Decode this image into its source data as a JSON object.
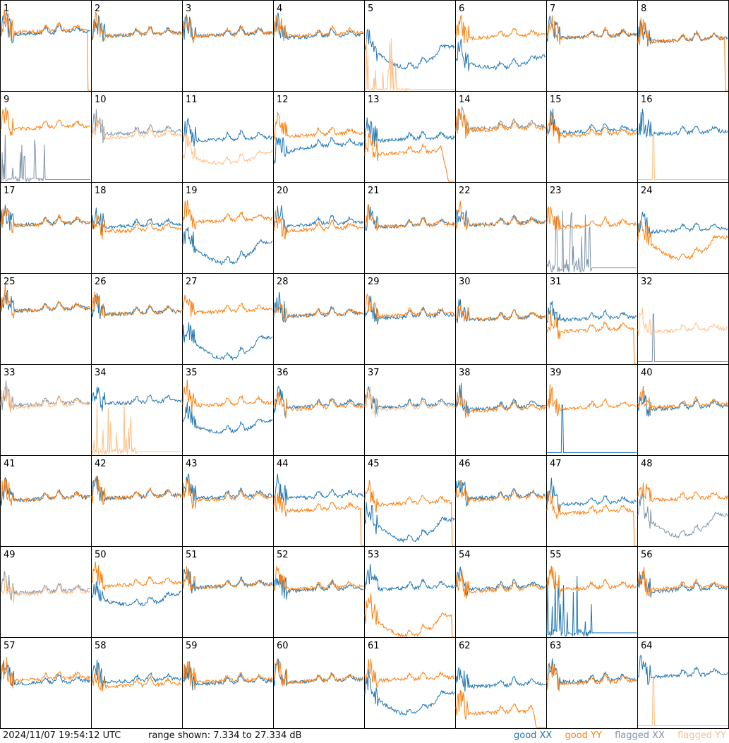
{
  "footer": {
    "timestamp": "2024/11/07 19:54:12 UTC",
    "range_text": "range shown: 7.334 to 27.334 dB"
  },
  "legend": [
    {
      "label": "good XX",
      "color": "#1f77b4"
    },
    {
      "label": "good YY",
      "color": "#ff7f0e"
    },
    {
      "label": "flagged XX",
      "color": "#7f94aa"
    },
    {
      "label": "flagged YY",
      "color": "#ffbf86"
    }
  ],
  "chart_data": {
    "type": "line",
    "layout": "small-multiples 8x8",
    "ylim": [
      7.334,
      27.334
    ],
    "yunit": "dB",
    "grid": false,
    "legend_placement": "bottom-right",
    "panels": [
      {
        "id": 1,
        "xx": "good",
        "yy": "good",
        "xx_level": 0.72,
        "yy_level": 0.74,
        "xx_shape": "flat",
        "yy_shape": "flat",
        "yy_dropout": true
      },
      {
        "id": 2,
        "xx": "good",
        "yy": "good",
        "xx_level": 0.7,
        "yy_level": 0.7,
        "xx_shape": "flat",
        "yy_shape": "flat"
      },
      {
        "id": 3,
        "xx": "good",
        "yy": "good",
        "xx_level": 0.7,
        "yy_level": 0.7,
        "xx_shape": "flat",
        "yy_shape": "flat"
      },
      {
        "id": 4,
        "xx": "good",
        "yy": "good",
        "xx_level": 0.68,
        "yy_level": 0.7,
        "xx_shape": "flat",
        "yy_shape": "flat"
      },
      {
        "id": 5,
        "xx": "good",
        "yy": "flagged",
        "xx_level": 0.55,
        "yy_level": 0.02,
        "xx_shape": "bowl",
        "yy_shape": "spikes"
      },
      {
        "id": 6,
        "xx": "good",
        "yy": "good",
        "xx_level": 0.45,
        "yy_level": 0.68,
        "xx_shape": "sag",
        "yy_shape": "flat"
      },
      {
        "id": 7,
        "xx": "good",
        "yy": "good",
        "xx_level": 0.68,
        "yy_level": 0.68,
        "xx_shape": "flat",
        "yy_shape": "flat"
      },
      {
        "id": 8,
        "xx": "good",
        "yy": "good",
        "xx_level": 0.64,
        "yy_level": 0.64,
        "xx_shape": "flat",
        "yy_shape": "flat",
        "yy_dropout": true
      },
      {
        "id": 9,
        "xx": "flagged",
        "yy": "good",
        "xx_level": 0.04,
        "yy_level": 0.68,
        "xx_shape": "spikes",
        "yy_shape": "flat"
      },
      {
        "id": 10,
        "xx": "flagged",
        "yy": "flagged",
        "xx_level": 0.62,
        "yy_level": 0.58,
        "xx_shape": "flat",
        "yy_shape": "flat"
      },
      {
        "id": 11,
        "xx": "good",
        "yy": "flagged",
        "xx_level": 0.55,
        "yy_level": 0.4,
        "xx_shape": "flat",
        "yy_shape": "sag"
      },
      {
        "id": 12,
        "xx": "good",
        "yy": "good",
        "xx_level": 0.48,
        "yy_level": 0.6,
        "xx_shape": "rise",
        "yy_shape": "flat"
      },
      {
        "id": 13,
        "xx": "good",
        "yy": "good",
        "xx_level": 0.55,
        "yy_level": 0.4,
        "xx_shape": "flat",
        "yy_shape": "dropend",
        "yy_dropout": true
      },
      {
        "id": 14,
        "xx": "flagged",
        "yy": "good",
        "xx_level": 0.68,
        "yy_level": 0.66,
        "xx_shape": "flat",
        "yy_shape": "flat"
      },
      {
        "id": 15,
        "xx": "good",
        "yy": "good",
        "xx_level": 0.64,
        "yy_level": 0.6,
        "xx_shape": "flat",
        "yy_shape": "flat"
      },
      {
        "id": 16,
        "xx": "good",
        "yy": "flagged",
        "xx_level": 0.62,
        "yy_level": 0.02,
        "xx_shape": "flat",
        "yy_shape": "spike1"
      },
      {
        "id": 17,
        "xx": "good",
        "yy": "good",
        "xx_level": 0.62,
        "yy_level": 0.62,
        "xx_shape": "flat",
        "yy_shape": "flat"
      },
      {
        "id": 18,
        "xx": "good",
        "yy": "good",
        "xx_level": 0.6,
        "yy_level": 0.55,
        "xx_shape": "flat",
        "yy_shape": "flat"
      },
      {
        "id": 19,
        "xx": "good",
        "yy": "good",
        "xx_level": 0.4,
        "yy_level": 0.66,
        "xx_shape": "bowl",
        "yy_shape": "flat"
      },
      {
        "id": 20,
        "xx": "good",
        "yy": "good",
        "xx_level": 0.62,
        "yy_level": 0.56,
        "xx_shape": "flat",
        "yy_shape": "flat"
      },
      {
        "id": 21,
        "xx": "good",
        "yy": "good",
        "xx_level": 0.6,
        "yy_level": 0.6,
        "xx_shape": "flat",
        "yy_shape": "flat"
      },
      {
        "id": 22,
        "xx": "good",
        "yy": "good",
        "xx_level": 0.62,
        "yy_level": 0.62,
        "xx_shape": "flat",
        "yy_shape": "flat"
      },
      {
        "id": 23,
        "xx": "flagged",
        "yy": "good",
        "xx_level": 0.1,
        "yy_level": 0.6,
        "xx_shape": "spikes",
        "yy_shape": "flat"
      },
      {
        "id": 24,
        "xx": "good",
        "yy": "good",
        "xx_level": 0.55,
        "yy_level": 0.45,
        "xx_shape": "flat",
        "yy_shape": "bowl"
      },
      {
        "id": 25,
        "xx": "good",
        "yy": "good",
        "xx_level": 0.68,
        "yy_level": 0.68,
        "xx_shape": "flat",
        "yy_shape": "flat"
      },
      {
        "id": 26,
        "xx": "good",
        "yy": "good",
        "xx_level": 0.64,
        "yy_level": 0.64,
        "xx_shape": "flat",
        "yy_shape": "flat"
      },
      {
        "id": 27,
        "xx": "good",
        "yy": "good",
        "xx_level": 0.35,
        "yy_level": 0.66,
        "xx_shape": "bowl",
        "yy_shape": "flat"
      },
      {
        "id": 28,
        "xx": "good",
        "yy": "good",
        "xx_level": 0.62,
        "yy_level": 0.62,
        "xx_shape": "flat",
        "yy_shape": "flat"
      },
      {
        "id": 29,
        "xx": "good",
        "yy": "good",
        "xx_level": 0.6,
        "yy_level": 0.62,
        "xx_shape": "flat",
        "yy_shape": "flat"
      },
      {
        "id": 30,
        "xx": "good",
        "yy": "good",
        "xx_level": 0.58,
        "yy_level": 0.58,
        "xx_shape": "flat",
        "yy_shape": "flat"
      },
      {
        "id": 31,
        "xx": "good",
        "yy": "good",
        "xx_level": 0.58,
        "yy_level": 0.45,
        "xx_shape": "flat",
        "yy_shape": "flat",
        "yy_dropout": true
      },
      {
        "id": 32,
        "xx": "flagged",
        "yy": "flagged",
        "xx_level": 0.02,
        "yy_level": 0.45,
        "xx_shape": "spike1",
        "yy_shape": "flat"
      },
      {
        "id": 33,
        "xx": "flagged",
        "yy": "flagged",
        "xx_level": 0.64,
        "yy_level": 0.62,
        "xx_shape": "flat",
        "yy_shape": "flat"
      },
      {
        "id": 34,
        "xx": "good",
        "yy": "flagged",
        "xx_level": 0.66,
        "yy_level": 0.06,
        "xx_shape": "flat",
        "yy_shape": "spikes"
      },
      {
        "id": 35,
        "xx": "good",
        "yy": "good",
        "xx_level": 0.45,
        "yy_level": 0.64,
        "xx_shape": "sag",
        "yy_shape": "flat"
      },
      {
        "id": 36,
        "xx": "good",
        "yy": "good",
        "xx_level": 0.62,
        "yy_level": 0.6,
        "xx_shape": "flat",
        "yy_shape": "flat"
      },
      {
        "id": 37,
        "xx": "good",
        "yy": "flagged",
        "xx_level": 0.62,
        "yy_level": 0.6,
        "xx_shape": "flat",
        "yy_shape": "flat"
      },
      {
        "id": 38,
        "xx": "good",
        "yy": "good",
        "xx_level": 0.6,
        "yy_level": 0.58,
        "xx_shape": "flat",
        "yy_shape": "flat"
      },
      {
        "id": 39,
        "xx": "good",
        "yy": "good",
        "xx_level": 0.02,
        "yy_level": 0.6,
        "xx_shape": "spike1",
        "yy_shape": "flat"
      },
      {
        "id": 40,
        "xx": "good",
        "yy": "good",
        "xx_level": 0.6,
        "yy_level": 0.62,
        "xx_shape": "flat",
        "yy_shape": "flat"
      },
      {
        "id": 41,
        "xx": "good",
        "yy": "good",
        "xx_level": 0.6,
        "yy_level": 0.6,
        "xx_shape": "flat",
        "yy_shape": "flat"
      },
      {
        "id": 42,
        "xx": "good",
        "yy": "good",
        "xx_level": 0.62,
        "yy_level": 0.62,
        "xx_shape": "flat",
        "yy_shape": "flat"
      },
      {
        "id": 43,
        "xx": "good",
        "yy": "good",
        "xx_level": 0.62,
        "yy_level": 0.6,
        "xx_shape": "flat",
        "yy_shape": "flat"
      },
      {
        "id": 44,
        "xx": "good",
        "yy": "good",
        "xx_level": 0.62,
        "yy_level": 0.48,
        "xx_shape": "flat",
        "yy_shape": "flat",
        "yy_dropout": true
      },
      {
        "id": 45,
        "xx": "good",
        "yy": "good",
        "xx_level": 0.35,
        "yy_level": 0.55,
        "xx_shape": "bowl",
        "yy_shape": "flat",
        "yy_dropout": true
      },
      {
        "id": 46,
        "xx": "good",
        "yy": "good",
        "xx_level": 0.62,
        "yy_level": 0.6,
        "xx_shape": "flat",
        "yy_shape": "flat"
      },
      {
        "id": 47,
        "xx": "good",
        "yy": "good",
        "xx_level": 0.55,
        "yy_level": 0.45,
        "xx_shape": "flat",
        "yy_shape": "flat",
        "yy_dropout": true
      },
      {
        "id": 48,
        "xx": "flagged",
        "yy": "good",
        "xx_level": 0.4,
        "yy_level": 0.6,
        "xx_shape": "bowl",
        "yy_shape": "flat"
      },
      {
        "id": 49,
        "xx": "flagged",
        "yy": "flagged",
        "xx_level": 0.58,
        "yy_level": 0.56,
        "xx_shape": "flat",
        "yy_shape": "flat"
      },
      {
        "id": 50,
        "xx": "good",
        "yy": "good",
        "xx_level": 0.55,
        "yy_level": 0.66,
        "xx_shape": "sag",
        "yy_shape": "flat"
      },
      {
        "id": 51,
        "xx": "good",
        "yy": "good",
        "xx_level": 0.64,
        "yy_level": 0.64,
        "xx_shape": "flat",
        "yy_shape": "flat"
      },
      {
        "id": 52,
        "xx": "good",
        "yy": "good",
        "xx_level": 0.6,
        "yy_level": 0.62,
        "xx_shape": "flat",
        "yy_shape": "flat"
      },
      {
        "id": 53,
        "xx": "good",
        "yy": "good",
        "xx_level": 0.62,
        "yy_level": 0.3,
        "xx_shape": "flat",
        "yy_shape": "bowl",
        "yy_dropout": true
      },
      {
        "id": 54,
        "xx": "good",
        "yy": "good",
        "xx_level": 0.62,
        "yy_level": 0.6,
        "xx_shape": "flat",
        "yy_shape": "flat"
      },
      {
        "id": 55,
        "xx": "good",
        "yy": "good",
        "xx_level": 0.08,
        "yy_level": 0.62,
        "xx_shape": "spikes",
        "yy_shape": "flat"
      },
      {
        "id": 56,
        "xx": "good",
        "yy": "good",
        "xx_level": 0.6,
        "yy_level": 0.62,
        "xx_shape": "flat",
        "yy_shape": "flat"
      },
      {
        "id": 57,
        "xx": "good",
        "yy": "good",
        "xx_level": 0.58,
        "yy_level": 0.62,
        "xx_shape": "flat",
        "yy_shape": "flat"
      },
      {
        "id": 58,
        "xx": "good",
        "yy": "good",
        "xx_level": 0.6,
        "yy_level": 0.55,
        "xx_shape": "flat",
        "yy_shape": "flat"
      },
      {
        "id": 59,
        "xx": "good",
        "yy": "good",
        "xx_level": 0.58,
        "yy_level": 0.6,
        "xx_shape": "flat",
        "yy_shape": "flat"
      },
      {
        "id": 60,
        "xx": "good",
        "yy": "good",
        "xx_level": 0.6,
        "yy_level": 0.6,
        "xx_shape": "flat",
        "yy_shape": "flat"
      },
      {
        "id": 61,
        "xx": "good",
        "yy": "good",
        "xx_level": 0.45,
        "yy_level": 0.62,
        "xx_shape": "bowl",
        "yy_shape": "flat"
      },
      {
        "id": 62,
        "xx": "good",
        "yy": "good",
        "xx_level": 0.55,
        "yy_level": 0.25,
        "xx_shape": "flat",
        "yy_shape": "dropend",
        "yy_dropout": true
      },
      {
        "id": 63,
        "xx": "good",
        "yy": "good",
        "xx_level": 0.6,
        "yy_level": 0.58,
        "xx_shape": "flat",
        "yy_shape": "flat"
      },
      {
        "id": 64,
        "xx": "good",
        "yy": "flagged",
        "xx_level": 0.66,
        "yy_level": 0.02,
        "xx_shape": "flat",
        "yy_shape": "spike1"
      }
    ]
  }
}
